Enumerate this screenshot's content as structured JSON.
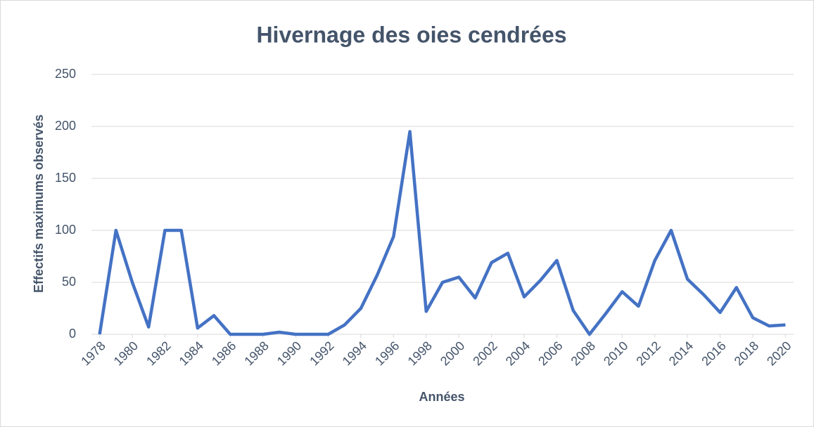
{
  "chart_data": {
    "type": "line",
    "title": "Hivernage des oies cendrées",
    "x_label": "Années",
    "y_label": "Effectifs maximums observés",
    "x": [
      1978,
      1979,
      1980,
      1981,
      1982,
      1983,
      1984,
      1985,
      1986,
      1987,
      1988,
      1989,
      1990,
      1991,
      1992,
      1993,
      1994,
      1995,
      1996,
      1997,
      1998,
      1999,
      2000,
      2001,
      2002,
      2003,
      2004,
      2005,
      2006,
      2007,
      2008,
      2009,
      2010,
      2011,
      2012,
      2013,
      2014,
      2015,
      2016,
      2017,
      2018,
      2019,
      2020
    ],
    "series": [
      {
        "color": "#4472c4",
        "values": [
          0,
          100,
          50,
          7,
          100,
          100,
          6,
          18,
          0,
          0,
          0,
          2,
          0,
          0,
          0,
          9,
          25,
          57,
          94,
          195,
          22,
          50,
          55,
          35,
          69,
          78,
          36,
          52,
          71,
          23,
          0,
          20,
          41,
          27,
          71,
          100,
          53,
          38,
          21,
          45,
          16,
          8,
          9
        ]
      }
    ],
    "xlim": [
      1977.5,
      2020.5
    ],
    "xticks": [
      1978,
      1980,
      1982,
      1984,
      1986,
      1988,
      1990,
      1992,
      1994,
      1996,
      1998,
      2000,
      2002,
      2004,
      2006,
      2008,
      2010,
      2012,
      2014,
      2016,
      2018,
      2020
    ],
    "ylim": [
      0,
      250
    ],
    "yticks": [
      0,
      50,
      100,
      150,
      200,
      250
    ],
    "grid": true
  }
}
